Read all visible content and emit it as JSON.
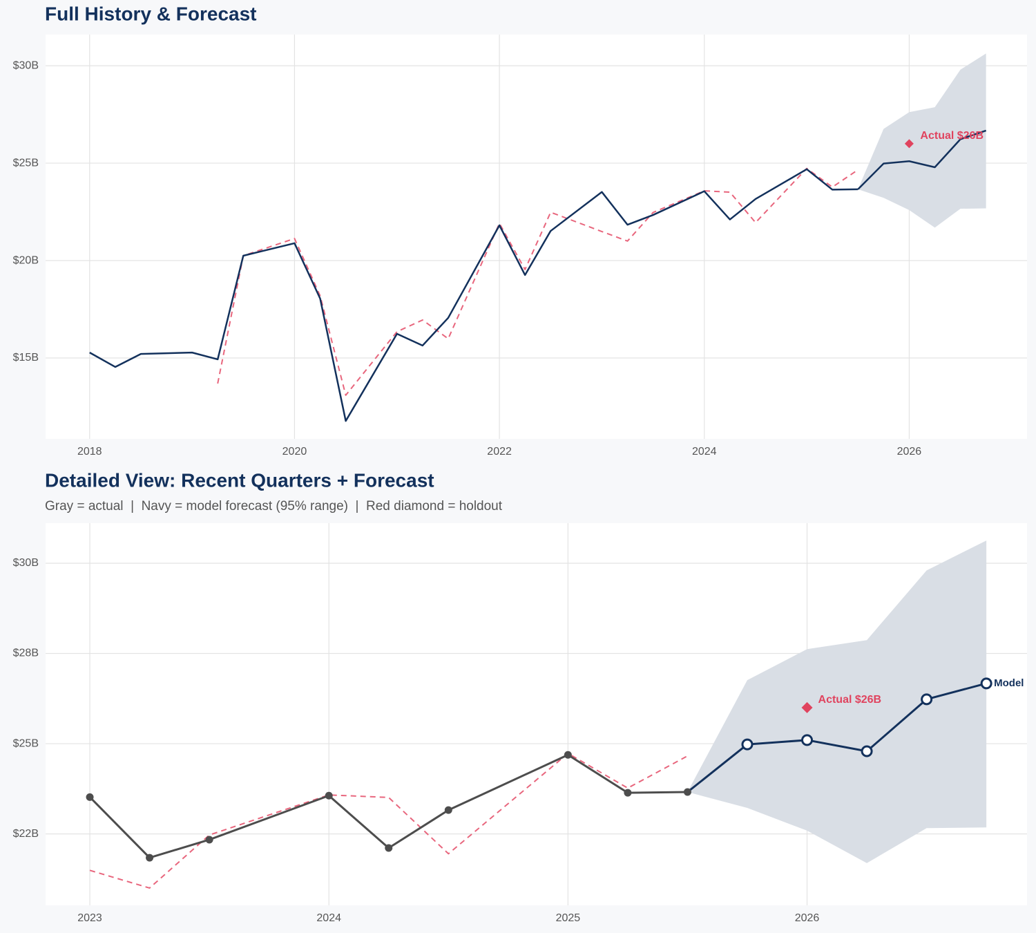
{
  "chart_data": [
    {
      "type": "line",
      "title": "Full History & Forecast",
      "xlim": [
        2017.57,
        2027.15
      ],
      "xticks": [
        2018,
        2020,
        2022,
        2024,
        2026
      ],
      "ylim": [
        10.85,
        31.6
      ],
      "yticks": [
        {
          "value": 15,
          "label": "$15B"
        },
        {
          "value": 20,
          "label": "$20B"
        },
        {
          "value": 25,
          "label": "$25B"
        },
        {
          "value": 30,
          "label": "$30B"
        }
      ],
      "grid": true,
      "series": [
        {
          "color": "#13315c",
          "x": [
            2018,
            2018.25,
            2018.5,
            2019,
            2019.25,
            2019.5,
            2020,
            2020.25,
            2020.5,
            2021,
            2021.25,
            2021.5,
            2022,
            2022.25,
            2022.5,
            2023,
            2023.25,
            2023.5,
            2024,
            2024.25,
            2024.5,
            2025,
            2025.25,
            2025.5
          ],
          "values": [
            15.28,
            14.54,
            15.21,
            15.28,
            14.93,
            20.25,
            20.89,
            18.05,
            11.77,
            16.24,
            15.64,
            17.06,
            21.81,
            19.26,
            21.52,
            23.52,
            21.84,
            22.34,
            23.56,
            22.11,
            23.16,
            24.69,
            23.64,
            23.66
          ]
        },
        {
          "color": "#e8667d",
          "dash": true,
          "x": [
            2019.25,
            2019.5,
            2020,
            2020.25,
            2020.5,
            2021,
            2021.25,
            2021.5,
            2022,
            2022.25,
            2022.5,
            2023,
            2023.25,
            2023.5,
            2024,
            2024.25,
            2024.5,
            2025,
            2025.25,
            2025.5
          ],
          "values": [
            13.69,
            20.25,
            21.13,
            18.19,
            13.09,
            16.35,
            16.95,
            15.99,
            21.91,
            19.54,
            22.48,
            21.49,
            21.0,
            22.47,
            23.58,
            23.51,
            21.95,
            24.73,
            23.77,
            24.66
          ]
        },
        {
          "color": "#13315c",
          "band_color": "#d9dee5",
          "x": [
            2025.75,
            2026,
            2026.25,
            2026.5,
            2026.75
          ],
          "values": [
            24.98,
            25.1,
            24.79,
            26.23,
            26.67
          ],
          "lower": [
            23.22,
            22.59,
            21.69,
            22.66,
            22.68
          ],
          "upper": [
            26.76,
            27.62,
            27.87,
            29.8,
            30.63
          ]
        },
        {
          "color": "#e0435e",
          "marker": "diamond",
          "x": [
            2026
          ],
          "values": [
            26
          ],
          "value_labels": [
            "Actual $26B"
          ]
        }
      ]
    },
    {
      "type": "line",
      "title": "Detailed View: Recent Quarters + Forecast",
      "subtitle": "Gray = actual  |  Navy = model forecast (95% range)  |  Red diamond = holdout",
      "xlim": [
        2022.815,
        2026.92
      ],
      "xticks": [
        2023,
        2024,
        2025,
        2026
      ],
      "ylim": [
        20.52,
        31.11
      ],
      "yticks": [
        {
          "value": 22.5,
          "label": "$22B"
        },
        {
          "value": 25,
          "label": "$25B"
        },
        {
          "value": 27.5,
          "label": "$28B"
        },
        {
          "value": 30,
          "label": "$30B"
        }
      ],
      "grid": true,
      "series": [
        {
          "color": "#4d4d4d",
          "marker": "dot",
          "x": [
            2023,
            2023.25,
            2023.5,
            2024,
            2024.25,
            2024.5,
            2025,
            2025.25,
            2025.5
          ],
          "values": [
            23.52,
            21.84,
            22.34,
            23.56,
            22.11,
            23.16,
            24.69,
            23.64,
            23.66
          ]
        },
        {
          "color": "#e8667d",
          "dash": true,
          "x": [
            2023,
            2023.25,
            2023.5,
            2024,
            2024.25,
            2024.5,
            2025,
            2025.25,
            2025.5
          ],
          "values": [
            21.49,
            21.0,
            22.47,
            23.58,
            23.51,
            21.95,
            24.73,
            23.77,
            24.66
          ]
        },
        {
          "color": "#13315c",
          "band_color": "#d9dee5",
          "marker": "open",
          "label": "Model",
          "x": [
            2025.75,
            2026,
            2026.25,
            2026.5,
            2026.75
          ],
          "values": [
            24.98,
            25.1,
            24.79,
            26.23,
            26.67
          ],
          "lower": [
            23.22,
            22.59,
            21.69,
            22.66,
            22.68
          ],
          "upper": [
            26.76,
            27.62,
            27.87,
            29.8,
            30.63
          ]
        },
        {
          "color": "#e0435e",
          "marker": "diamond",
          "x": [
            2026
          ],
          "values": [
            26
          ],
          "value_labels": [
            "Actual $26B"
          ]
        }
      ]
    }
  ]
}
